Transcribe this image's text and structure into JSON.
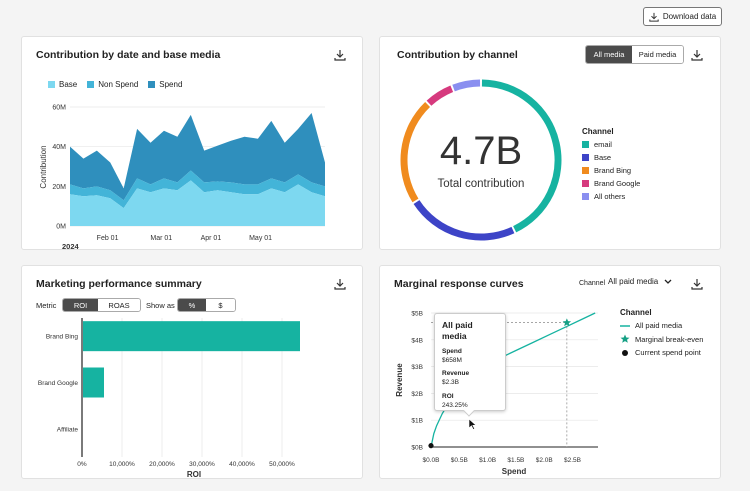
{
  "toolbar": {
    "download_label": "Download data"
  },
  "contribution_date": {
    "title": "Contribution by date and base media",
    "legend": [
      {
        "name": "Base",
        "color": "#7dd8f0"
      },
      {
        "name": "Non Spend",
        "color": "#43b4d8"
      },
      {
        "name": "Spend",
        "color": "#2f8fbd"
      }
    ]
  },
  "contribution_channel": {
    "title": "Contribution by channel",
    "toggle": [
      "All media",
      "Paid media"
    ],
    "center_value": "4.7B",
    "center_label": "Total contribution",
    "legend_title": "Channel",
    "legend": [
      {
        "name": "email",
        "color": "#16b3a1"
      },
      {
        "name": "Base",
        "color": "#3d44c7"
      },
      {
        "name": "Brand Bing",
        "color": "#f08b1e"
      },
      {
        "name": "Brand Google",
        "color": "#d63a7e"
      },
      {
        "name": "All others",
        "color": "#8a8ff0"
      }
    ]
  },
  "marketing_summary": {
    "title": "Marketing performance summary",
    "metric_label": "Metric",
    "metric_toggle": [
      "ROI",
      "ROAS"
    ],
    "show_as_label": "Show as",
    "show_as_toggle": [
      "%",
      "$"
    ]
  },
  "response_curves": {
    "title": "Marginal response curves",
    "channel_label": "Channel",
    "channel_value": "All paid media",
    "legend_title": "Channel",
    "legend": [
      {
        "name": "All paid media",
        "color": "#16b3a1"
      },
      {
        "name": "Marginal break-even",
        "color": "#16a085"
      },
      {
        "name": "Current spend point",
        "color": "#111111"
      }
    ],
    "tooltip": {
      "title": "All paid media",
      "spend_label": "Spend",
      "spend_value": "$658M",
      "revenue_label": "Revenue",
      "revenue_value": "$2.3B",
      "roi_label": "ROI",
      "roi_value": "243.25%"
    }
  },
  "chart_data": [
    {
      "type": "area",
      "name": "contribution_by_date",
      "year_label": "2024",
      "xlabel": "",
      "ylabel": "Contribution",
      "ylim": [
        0,
        60
      ],
      "y_ticks": [
        "0M",
        "20M",
        "40M",
        "60M"
      ],
      "x_ticks": [
        "Feb 01",
        "Mar 01",
        "Apr 01",
        "May 01"
      ],
      "x": [
        0,
        1,
        2,
        3,
        4,
        5,
        6,
        7,
        8,
        9,
        10,
        11,
        12,
        13,
        14,
        15,
        16,
        17,
        18,
        19
      ],
      "series": [
        {
          "name": "Base",
          "values": [
            16,
            15,
            15.5,
            14,
            9,
            19,
            17,
            19,
            18,
            23,
            17,
            18,
            17,
            16,
            16,
            19,
            17,
            21,
            17,
            15
          ]
        },
        {
          "name": "Non Spend",
          "values": [
            5,
            4,
            4.5,
            4,
            4,
            5,
            4,
            5,
            4,
            5,
            5,
            4.5,
            5,
            5,
            5,
            5,
            5,
            5,
            5,
            5
          ]
        },
        {
          "name": "Spend",
          "values": [
            19,
            15,
            18,
            14,
            6,
            25,
            21,
            24,
            23,
            28,
            16,
            18,
            21,
            24,
            23,
            29,
            20,
            23,
            35,
            12
          ]
        }
      ]
    },
    {
      "type": "pie",
      "name": "contribution_by_channel",
      "categories": [
        "email",
        "Base",
        "Brand Bing",
        "Brand Google",
        "All others"
      ],
      "values": [
        43,
        23,
        22,
        6,
        6
      ]
    },
    {
      "type": "bar",
      "name": "marketing_performance",
      "orientation": "horizontal",
      "xlabel": "ROI",
      "categories": [
        "Brand Bing",
        "Brand Google",
        "Affiliate"
      ],
      "values": [
        54500,
        5500,
        0
      ],
      "xlim": [
        0,
        55000
      ],
      "x_ticks": [
        "0%",
        "10,000%",
        "20,000%",
        "30,000%",
        "40,000%",
        "50,000%"
      ]
    },
    {
      "type": "line",
      "name": "marginal_response",
      "xlabel": "Spend",
      "ylabel": "Revenue",
      "x_ticks": [
        "$0.0B",
        "$0.5B",
        "$1.0B",
        "$1.5B",
        "$2.0B",
        "$2.5B"
      ],
      "y_ticks": [
        "$0B",
        "$1B",
        "$2B",
        "$3B",
        "$4B",
        "$5B"
      ],
      "xlim": [
        0,
        2.95
      ],
      "ylim": [
        0,
        5
      ],
      "series": [
        {
          "name": "All paid media",
          "x": [
            0,
            0.05,
            0.1,
            0.2,
            0.3,
            0.4,
            0.5,
            0.658,
            0.8,
            1.0,
            1.2,
            1.5,
            1.8,
            2.1,
            2.4,
            2.7,
            2.9
          ],
          "y": [
            0,
            0.5,
            0.8,
            1.25,
            1.6,
            1.9,
            2.1,
            2.3,
            2.7,
            3.0,
            3.3,
            3.6,
            3.9,
            4.2,
            4.5,
            4.8,
            5.0
          ]
        }
      ],
      "break_even": {
        "x": 2.4,
        "y": 4.65
      },
      "current_spend": {
        "x": 0.0,
        "y": 0.05
      }
    }
  ]
}
